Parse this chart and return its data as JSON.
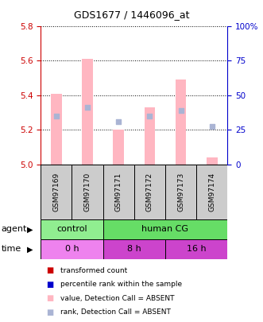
{
  "title": "GDS1677 / 1446096_at",
  "samples": [
    "GSM97169",
    "GSM97170",
    "GSM97171",
    "GSM97172",
    "GSM97173",
    "GSM97174"
  ],
  "ylim_left": [
    5.0,
    5.8
  ],
  "ylim_right": [
    0,
    100
  ],
  "yticks_left": [
    5.0,
    5.2,
    5.4,
    5.6,
    5.8
  ],
  "yticks_right": [
    0,
    25,
    50,
    75,
    100
  ],
  "bar_values": [
    5.41,
    5.61,
    5.2,
    5.33,
    5.49,
    5.04
  ],
  "bar_bottom": 5.0,
  "bar_color": "#ffb6c1",
  "dot_values_left": [
    5.28,
    5.33,
    5.25,
    5.28,
    5.31,
    5.22
  ],
  "dot_color": "#aab4d4",
  "dot_size": 15,
  "agent_groups": [
    {
      "label": "control",
      "start": 0,
      "end": 2,
      "color": "#90ee90"
    },
    {
      "label": "human CG",
      "start": 2,
      "end": 6,
      "color": "#66dd66"
    }
  ],
  "time_groups": [
    {
      "label": "0 h",
      "start": 0,
      "end": 2,
      "color": "#ee82ee"
    },
    {
      "label": "8 h",
      "start": 2,
      "end": 4,
      "color": "#cc44cc"
    },
    {
      "label": "16 h",
      "start": 4,
      "end": 6,
      "color": "#cc44cc"
    }
  ],
  "legend_items": [
    {
      "label": "transformed count",
      "color": "#cc0000"
    },
    {
      "label": "percentile rank within the sample",
      "color": "#0000cc"
    },
    {
      "label": "value, Detection Call = ABSENT",
      "color": "#ffb6c1"
    },
    {
      "label": "rank, Detection Call = ABSENT",
      "color": "#aab4d4"
    }
  ],
  "left_axis_color": "#cc0000",
  "right_axis_color": "#0000cc",
  "background_color": "#ffffff",
  "sample_box_color": "#cccccc",
  "bar_width": 0.35
}
